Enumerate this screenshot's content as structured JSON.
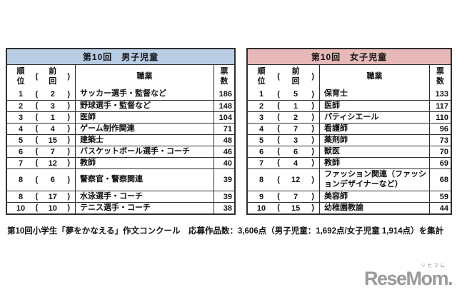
{
  "ui": {
    "paren_open": "(",
    "paren_close": ")"
  },
  "tables": [
    {
      "title": "第10回　男子児童",
      "header_bg": "#b8cce4",
      "columns": {
        "rank_label": "順\n位",
        "prev_label": "前\n回",
        "job_label": "職業",
        "votes_label": "票\n数"
      },
      "rows": [
        {
          "rank": "1",
          "prev": "2",
          "job": "サッカー選手・監督など",
          "votes": "186"
        },
        {
          "rank": "2",
          "prev": "3",
          "job": "野球選手・監督など",
          "votes": "148"
        },
        {
          "rank": "3",
          "prev": "1",
          "job": "医師",
          "votes": "104"
        },
        {
          "rank": "4",
          "prev": "4",
          "job": "ゲーム制作関連",
          "votes": "71"
        },
        {
          "rank": "5",
          "prev": "15",
          "job": "建築士",
          "votes": "48"
        },
        {
          "rank": "6",
          "prev": "7",
          "job": "バスケットボール選手・コーチ",
          "votes": "46"
        },
        {
          "rank": "7",
          "prev": "12",
          "job": "教師",
          "votes": "40"
        },
        {
          "rank": "8",
          "prev": "6",
          "job": "警察官・警察関連",
          "votes": "39",
          "tall": true
        },
        {
          "rank": "8",
          "prev": "17",
          "job": "水泳選手・コーチ",
          "votes": "39"
        },
        {
          "rank": "10",
          "prev": "10",
          "job": "テニス選手・コーチ",
          "votes": "38"
        }
      ]
    },
    {
      "title": "第10回　女子児童",
      "header_bg": "#e6b9b8",
      "columns": {
        "rank_label": "順\n位",
        "prev_label": "前\n回",
        "job_label": "職業",
        "votes_label": "票\n数"
      },
      "rows": [
        {
          "rank": "1",
          "prev": "5",
          "job": "保育士",
          "votes": "133"
        },
        {
          "rank": "2",
          "prev": "1",
          "job": "医師",
          "votes": "117"
        },
        {
          "rank": "3",
          "prev": "2",
          "job": "パティシエール",
          "votes": "110"
        },
        {
          "rank": "4",
          "prev": "7",
          "job": "看護師",
          "votes": "96"
        },
        {
          "rank": "5",
          "prev": "3",
          "job": "薬剤師",
          "votes": "73"
        },
        {
          "rank": "6",
          "prev": "6",
          "job": "獣医",
          "votes": "70"
        },
        {
          "rank": "7",
          "prev": "4",
          "job": "教師",
          "votes": "69"
        },
        {
          "rank": "8",
          "prev": "12",
          "job": "ファッション関連（ファッションデザイナーなど）",
          "votes": "68",
          "tall": true
        },
        {
          "rank": "9",
          "prev": "7",
          "job": "美容師",
          "votes": "59"
        },
        {
          "rank": "10",
          "prev": "15",
          "job": "幼稚園教諭",
          "votes": "44"
        }
      ]
    }
  ],
  "footer_note": "第10回小学生「夢をかなえる」作文コンクール　応募作品数：3,606点（男子児童：1,692点/女子児童 1,914点）を集計",
  "logo": {
    "ruby": "リセマム",
    "wordmark": "ReseMom.",
    "color": "#9a9a9a"
  },
  "chart_data": [
    {
      "type": "table",
      "title": "第10回　男子児童",
      "columns": [
        "順位",
        "前回",
        "職業",
        "票数"
      ],
      "rows": [
        [
          1,
          2,
          "サッカー選手・監督など",
          186
        ],
        [
          2,
          3,
          "野球選手・監督など",
          148
        ],
        [
          3,
          1,
          "医師",
          104
        ],
        [
          4,
          4,
          "ゲーム制作関連",
          71
        ],
        [
          5,
          15,
          "建築士",
          48
        ],
        [
          6,
          7,
          "バスケットボール選手・コーチ",
          46
        ],
        [
          7,
          12,
          "教師",
          40
        ],
        [
          8,
          6,
          "警察官・警察関連",
          39
        ],
        [
          8,
          17,
          "水泳選手・コーチ",
          39
        ],
        [
          10,
          10,
          "テニス選手・コーチ",
          38
        ]
      ]
    },
    {
      "type": "table",
      "title": "第10回　女子児童",
      "columns": [
        "順位",
        "前回",
        "職業",
        "票数"
      ],
      "rows": [
        [
          1,
          5,
          "保育士",
          133
        ],
        [
          2,
          1,
          "医師",
          117
        ],
        [
          3,
          2,
          "パティシエール",
          110
        ],
        [
          4,
          7,
          "看護師",
          96
        ],
        [
          5,
          3,
          "薬剤師",
          73
        ],
        [
          6,
          6,
          "獣医",
          70
        ],
        [
          7,
          4,
          "教師",
          69
        ],
        [
          8,
          12,
          "ファッション関連（ファッションデザイナーなど）",
          68
        ],
        [
          9,
          7,
          "美容師",
          59
        ],
        [
          10,
          15,
          "幼稚園教諭",
          44
        ]
      ]
    }
  ]
}
